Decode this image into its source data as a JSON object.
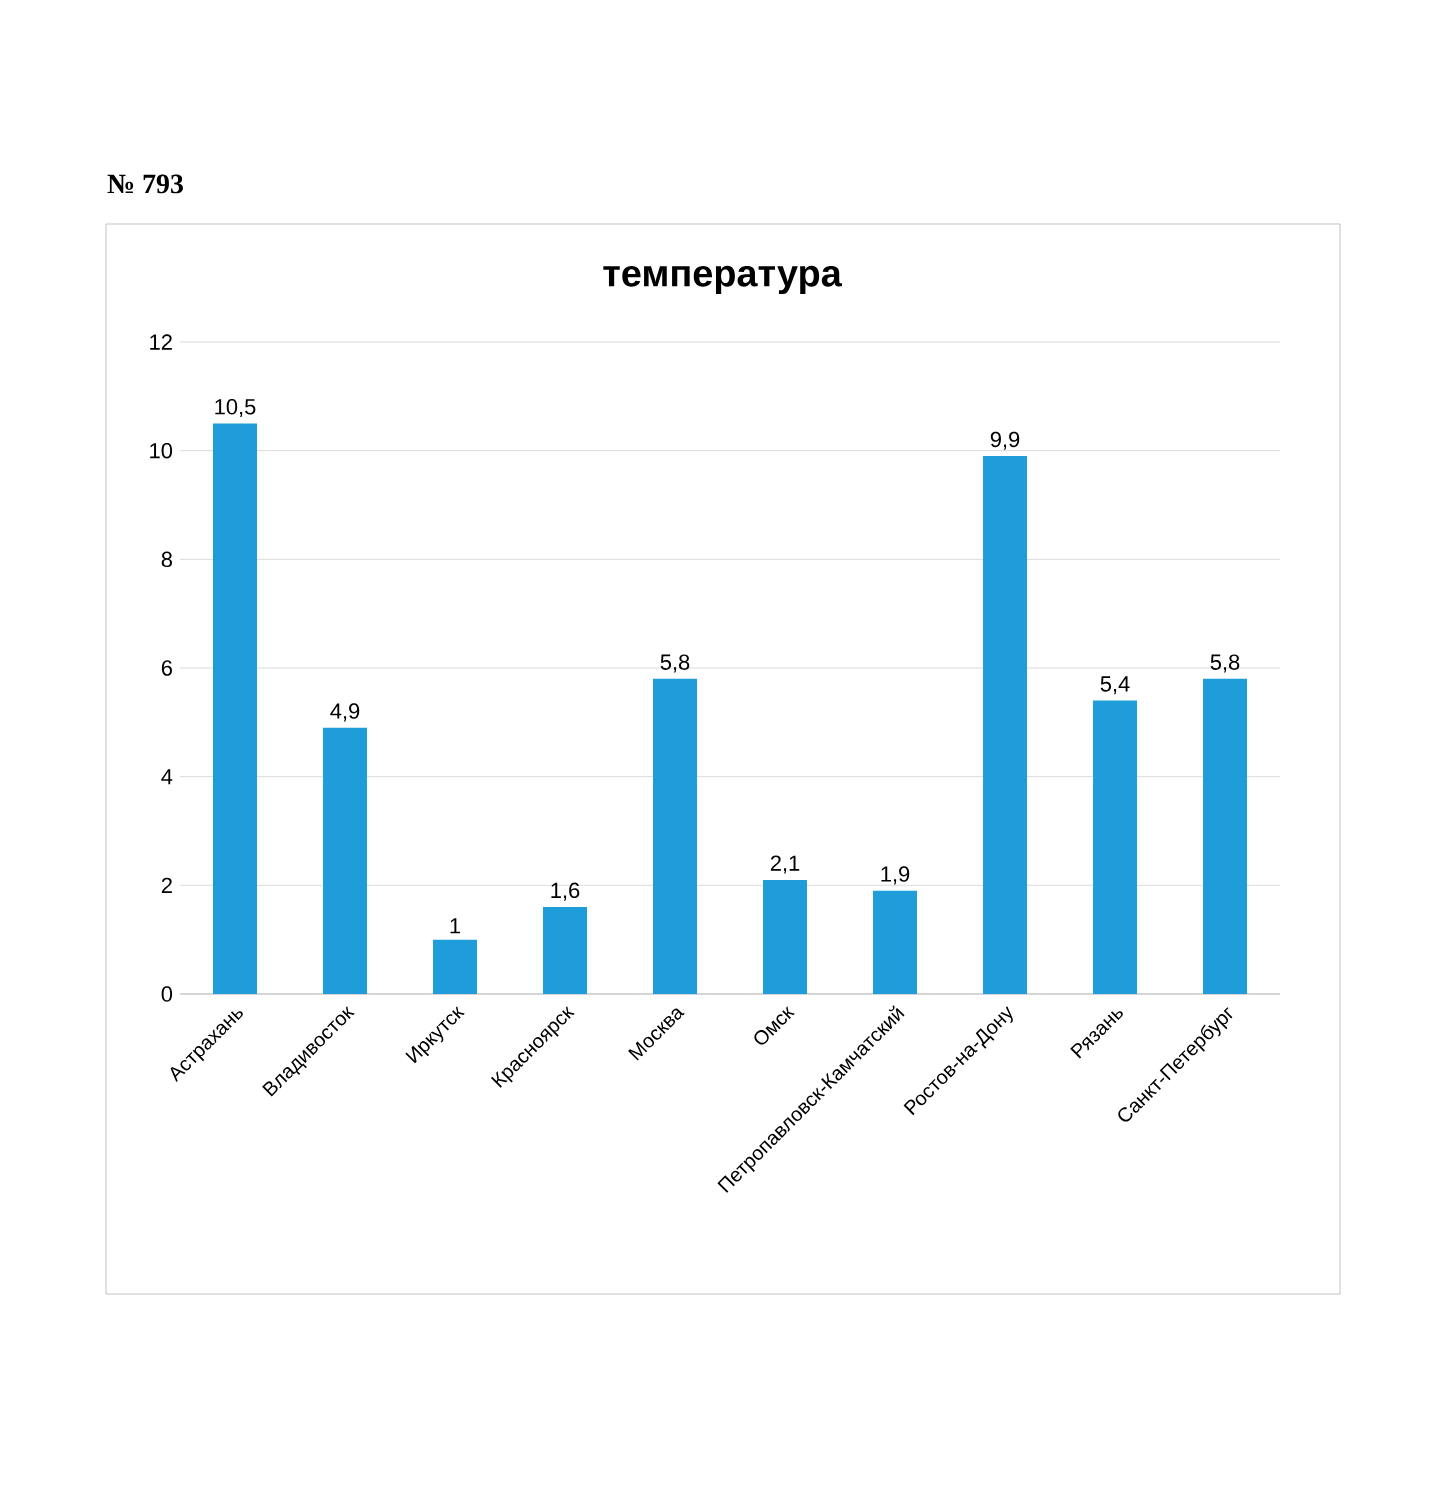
{
  "chart_data": {
    "type": "bar",
    "title": "температура",
    "categories": [
      "Астрахань",
      "Владивосток",
      "Иркутск",
      "Красноярск",
      "Москва",
      "Омск",
      "Петропавловск-Камчатский",
      "Ростов-на-Дону",
      "Рязань",
      "Санкт-Петербург"
    ],
    "values": [
      10.5,
      4.9,
      1,
      1.6,
      5.8,
      2.1,
      1.9,
      9.9,
      5.4,
      5.8
    ],
    "value_labels": [
      "10,5",
      "4,9",
      "1",
      "1,6",
      "5,8",
      "2,1",
      "1,9",
      "9,9",
      "5,4",
      "5,8"
    ],
    "color": "#1f9ddb",
    "ylim": [
      0,
      12
    ],
    "yticks": [
      0,
      2,
      4,
      6,
      8,
      10,
      12
    ],
    "grid": "y",
    "annotations": [
      "№ 793"
    ]
  }
}
